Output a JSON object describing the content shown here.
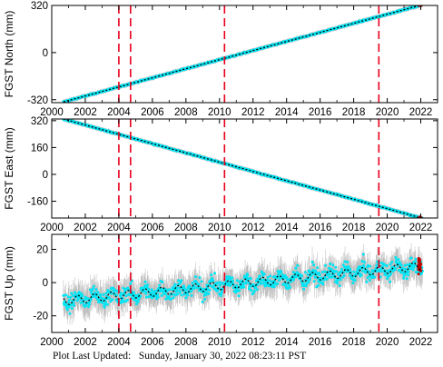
{
  "chart_data": [
    {
      "type": "scatter",
      "ylabel": "FGST North (mm)",
      "xlim": [
        2000,
        2023
      ],
      "ylim": [
        -340,
        320
      ],
      "x_ticks": [
        2000,
        2002,
        2004,
        2006,
        2008,
        2010,
        2012,
        2014,
        2016,
        2018,
        2020,
        2022
      ],
      "y_ticks": [
        -320,
        0,
        320
      ],
      "series": [
        {
          "trend": {
            "start": [
              2000.7,
              -335
            ],
            "end": [
              2022.1,
              325
            ]
          }
        }
      ],
      "event_lines": [
        2004.0,
        2004.7,
        2010.3,
        2019.5
      ]
    },
    {
      "type": "scatter",
      "ylabel": "FGST East (mm)",
      "xlim": [
        2000,
        2023
      ],
      "ylim": [
        -260,
        330
      ],
      "x_ticks": [
        2000,
        2002,
        2004,
        2006,
        2008,
        2010,
        2012,
        2014,
        2016,
        2018,
        2020,
        2022
      ],
      "y_ticks": [
        -160,
        0,
        160,
        320
      ],
      "series": [
        {
          "trend": {
            "start": [
              2000.7,
              330
            ],
            "end": [
              2022.1,
              -262
            ]
          }
        }
      ],
      "event_lines": [
        2004.0,
        2004.7,
        2010.3,
        2019.5
      ]
    },
    {
      "type": "scatter",
      "ylabel": "FGST Up (mm)",
      "xlim": [
        2000,
        2023
      ],
      "ylim": [
        -30,
        29
      ],
      "x_ticks": [
        2000,
        2002,
        2004,
        2006,
        2008,
        2010,
        2012,
        2014,
        2016,
        2018,
        2020,
        2022
      ],
      "y_ticks": [
        -20,
        0,
        20
      ],
      "series": [
        {
          "trend": {
            "start": [
              2000.7,
              -11
            ],
            "end": [
              2022.1,
              10
            ]
          },
          "seasonal_amplitude": 2.5,
          "scatter_sd": 3.5,
          "error_bar": 7
        }
      ],
      "event_lines": [
        2004.0,
        2004.7,
        2010.3,
        2019.5
      ]
    }
  ],
  "colors": {
    "data": "#00e5f5",
    "errorbars": "#b8b8b8",
    "model": "#000000",
    "events": "#e8001c",
    "recent": "#c00000"
  },
  "footer": {
    "label": "Plot Last Updated:",
    "value": "Sunday, January 30, 2022 08:23:11 PST"
  }
}
